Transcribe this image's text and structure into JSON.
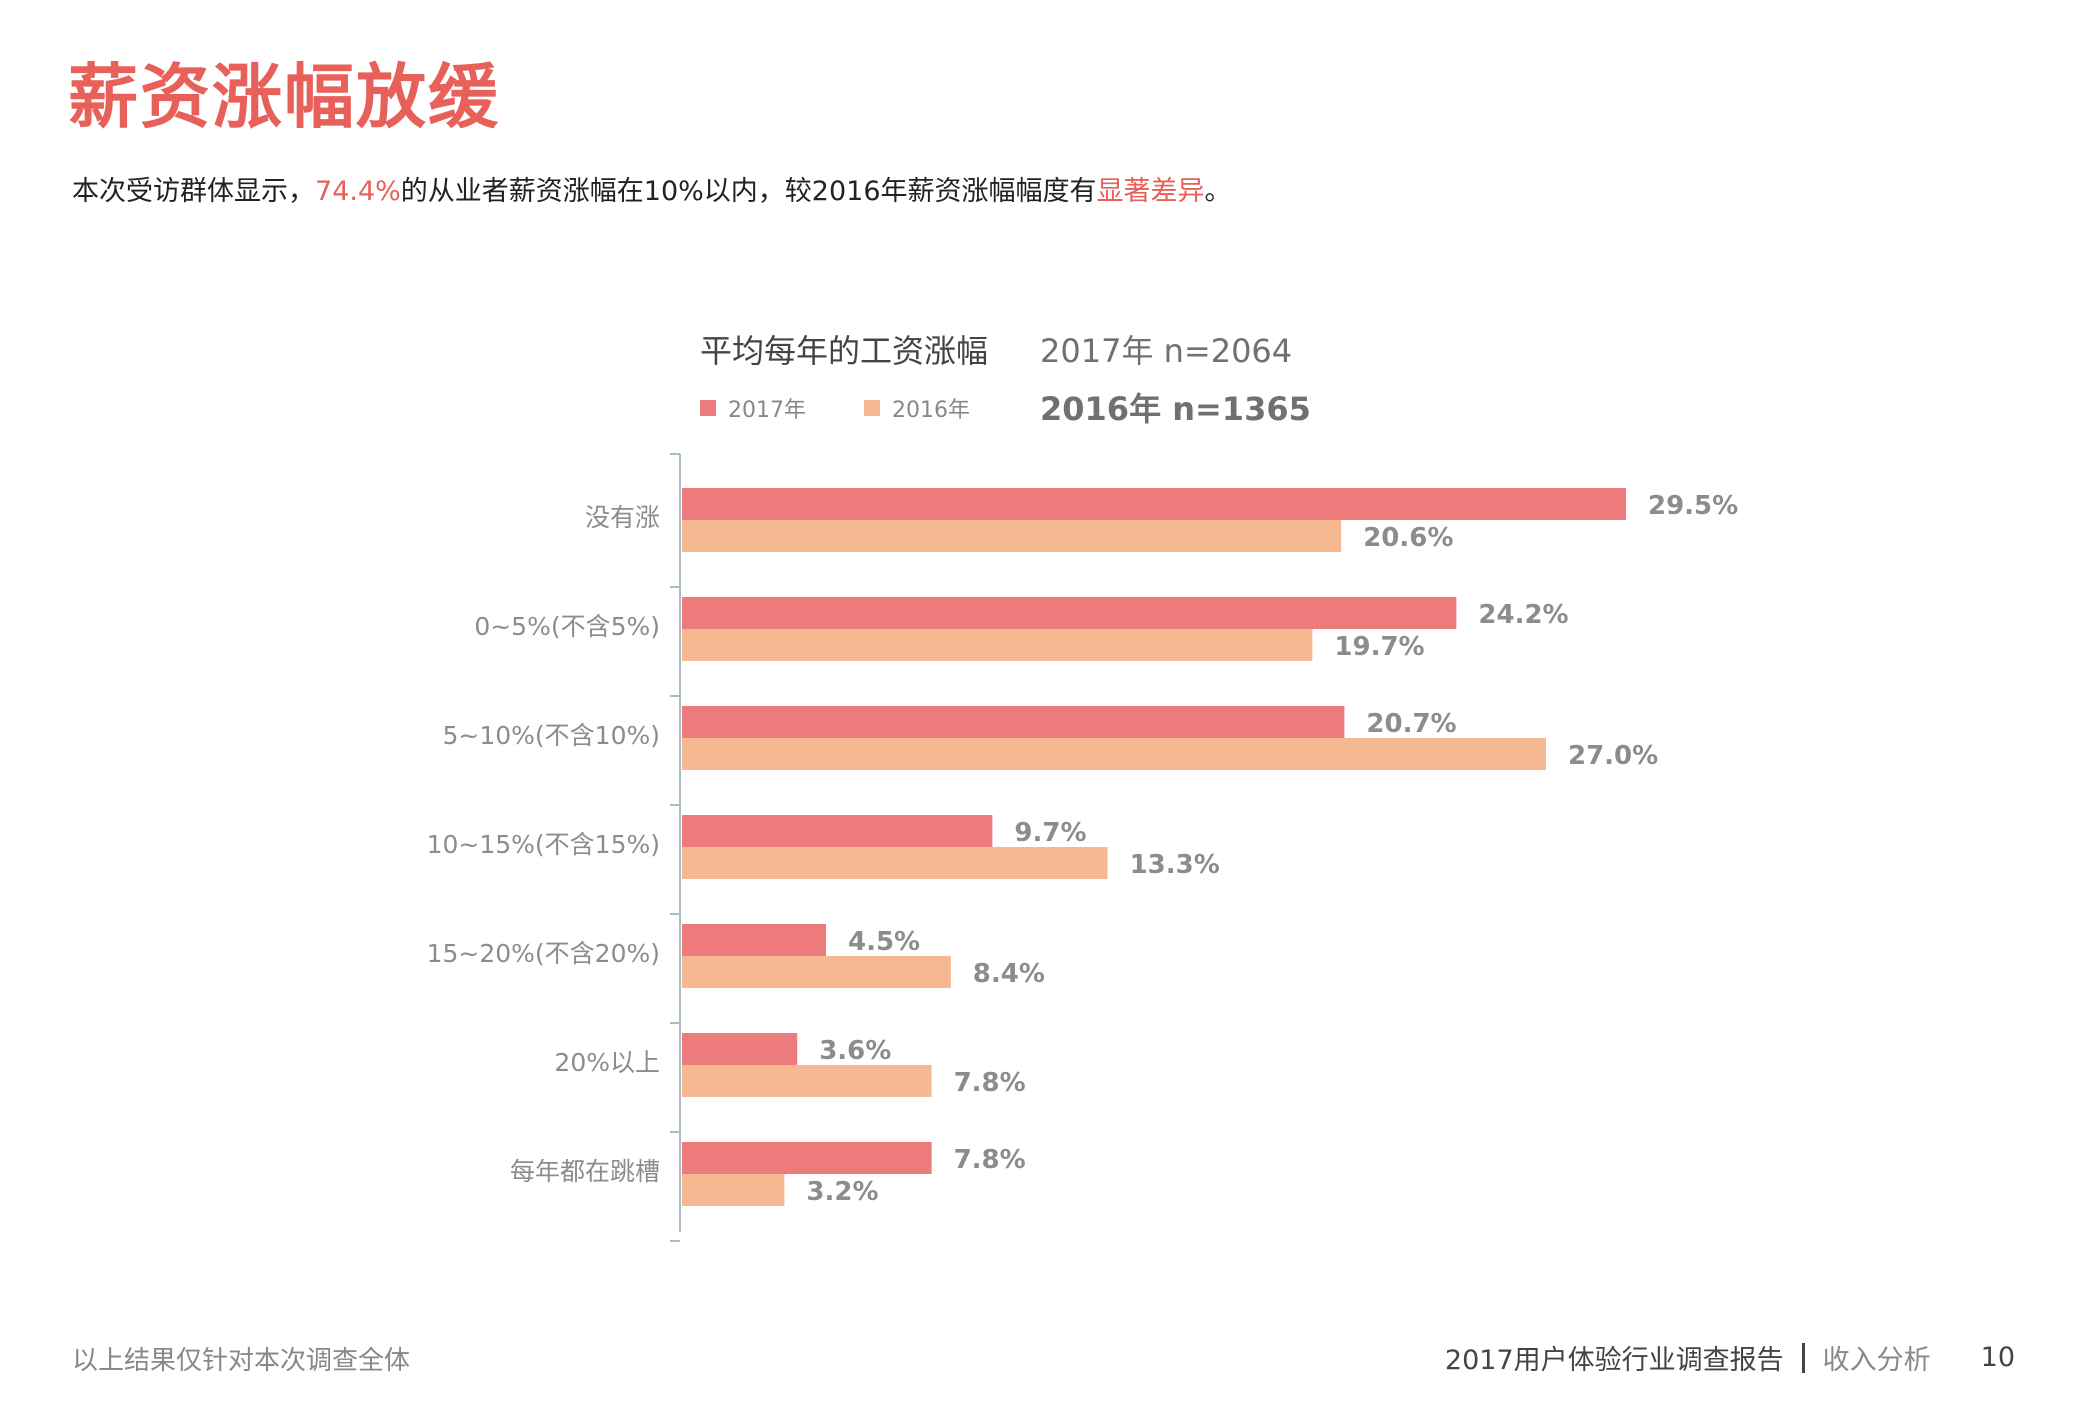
{
  "page": {
    "title": "薪资涨幅放缓",
    "summary": {
      "part1": "本次受访群体显示，",
      "highlight1": "74.4%",
      "part2": "的从业者薪资涨幅在10%以内，较2016年薪资涨幅幅度有",
      "highlight2": "显著差异",
      "part3": "。"
    },
    "footer_note": "以上结果仅针对本次调查全体",
    "report_name": "2017用户体验行业调查报告",
    "section_name": "收入分析",
    "page_number": "10"
  },
  "colors": {
    "accent": "#e8605a",
    "series_2017": "#ee7b7b",
    "series_2016": "#f5b891",
    "axis": "#a8bcc2",
    "label": "#8c8c8c"
  },
  "chart_data": {
    "type": "bar",
    "orientation": "horizontal",
    "title": "平均每年的工资涨幅",
    "sample_2017": "2017年 n=2064",
    "sample_2016": "2016年 n=1365",
    "categories": [
      "没有涨",
      "0~5%(不含5%)",
      "5~10%(不含10%)",
      "10~15%(不含15%)",
      "15~20%(不含20%)",
      "20%以上",
      "每年都在跳槽"
    ],
    "series": [
      {
        "name": "2017年",
        "color": "#ee7b7b",
        "values": [
          29.5,
          24.2,
          20.7,
          9.7,
          4.5,
          3.6,
          7.8
        ]
      },
      {
        "name": "2016年",
        "color": "#f5b891",
        "values": [
          20.6,
          19.7,
          27.0,
          13.3,
          8.4,
          7.8,
          3.2
        ]
      }
    ],
    "value_suffix": "%",
    "legend_position": "top-left",
    "grid": false
  }
}
